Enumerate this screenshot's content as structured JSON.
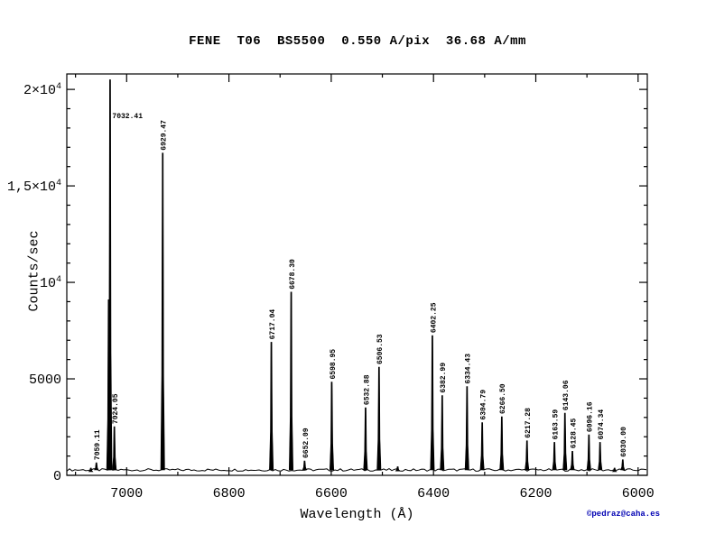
{
  "footer": {
    "credit": "©pedraz@caha.es",
    "credit_color": "#0000b3"
  },
  "chart_data": {
    "type": "line",
    "subtype": "emission-spectrum",
    "title": "FENE  T06  BS5500  0.550 A/pix  36.68 A/mm",
    "xlabel": "Wavelength (Å)",
    "ylabel": "Counts/sec",
    "x_axis": {
      "max_left": 7117,
      "min_right": 5982,
      "reversed": true,
      "major_ticks": [
        7000,
        6800,
        6600,
        6400,
        6200,
        6000
      ],
      "minor_tick_step": 100
    },
    "y_axis": {
      "min": 0,
      "max": 20800,
      "major_ticks": [
        {
          "value": 0,
          "t": "0"
        },
        {
          "value": 5000,
          "t": "5000"
        },
        {
          "value": 10000,
          "t": "10",
          "s": "4"
        },
        {
          "value": 15000,
          "t": "1,5×10",
          "s": "4"
        },
        {
          "value": 20000,
          "t": "2×10",
          "s": "4"
        }
      ],
      "minor_tick_step": 1000
    },
    "continuum_counts": 280,
    "line_color": "#000000",
    "grid": false,
    "peaks": [
      {
        "wavelength": 7070.0,
        "counts": 380,
        "label": ""
      },
      {
        "wavelength": 7059.11,
        "counts": 650,
        "label": "7059.11"
      },
      {
        "wavelength": 7035.2,
        "counts": 9100,
        "label": ""
      },
      {
        "wavelength": 7032.41,
        "counts": 20500,
        "label": "7032.41",
        "label_orientation": "horizontal"
      },
      {
        "wavelength": 7024.05,
        "counts": 2520,
        "label": "7024.05"
      },
      {
        "wavelength": 6929.47,
        "counts": 16700,
        "label": "6929.47"
      },
      {
        "wavelength": 6717.04,
        "counts": 6900,
        "label": "6717.04"
      },
      {
        "wavelength": 6678.3,
        "counts": 9500,
        "label": "6678.30"
      },
      {
        "wavelength": 6652.09,
        "counts": 750,
        "label": "6652.09"
      },
      {
        "wavelength": 6598.95,
        "counts": 4840,
        "label": "6598.95"
      },
      {
        "wavelength": 6532.88,
        "counts": 3500,
        "label": "6532.88"
      },
      {
        "wavelength": 6506.53,
        "counts": 5610,
        "label": "6506.53"
      },
      {
        "wavelength": 6470.0,
        "counts": 450,
        "label": ""
      },
      {
        "wavelength": 6402.25,
        "counts": 7240,
        "label": "6402.25"
      },
      {
        "wavelength": 6382.99,
        "counts": 4130,
        "label": "6382.99"
      },
      {
        "wavelength": 6334.43,
        "counts": 4600,
        "label": "6334.43"
      },
      {
        "wavelength": 6304.79,
        "counts": 2730,
        "label": "6304.79"
      },
      {
        "wavelength": 6266.5,
        "counts": 3040,
        "label": "6266.50"
      },
      {
        "wavelength": 6217.28,
        "counts": 1790,
        "label": "6217.28"
      },
      {
        "wavelength": 6163.59,
        "counts": 1710,
        "label": "6163.59"
      },
      {
        "wavelength": 6143.06,
        "counts": 3220,
        "label": "6143.06"
      },
      {
        "wavelength": 6128.45,
        "counts": 1250,
        "label": "6128.45"
      },
      {
        "wavelength": 6096.16,
        "counts": 2100,
        "label": "6096.16"
      },
      {
        "wavelength": 6074.34,
        "counts": 1710,
        "label": "6074.34"
      },
      {
        "wavelength": 6046.0,
        "counts": 380,
        "label": ""
      },
      {
        "wavelength": 6030.0,
        "counts": 810,
        "label": "6030.00"
      }
    ]
  }
}
